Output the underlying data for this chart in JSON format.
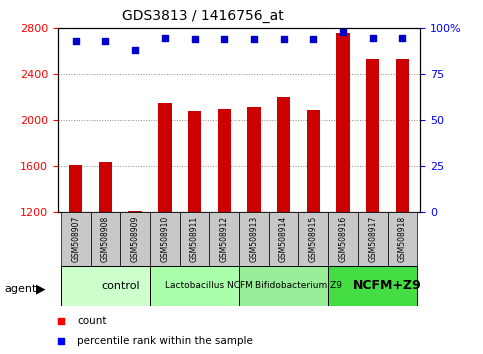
{
  "title": "GDS3813 / 1416756_at",
  "samples": [
    "GSM508907",
    "GSM508908",
    "GSM508909",
    "GSM508910",
    "GSM508911",
    "GSM508912",
    "GSM508913",
    "GSM508914",
    "GSM508915",
    "GSM508916",
    "GSM508917",
    "GSM508918"
  ],
  "counts": [
    1610,
    1635,
    1210,
    2150,
    2080,
    2100,
    2120,
    2200,
    2090,
    2760,
    2530,
    2530
  ],
  "percentile": [
    93,
    93,
    88,
    95,
    94,
    94,
    94,
    94,
    94,
    98,
    95,
    95
  ],
  "bar_color": "#cc0000",
  "dot_color": "#0000cc",
  "ylim_left": [
    1200,
    2800
  ],
  "ylim_right": [
    0,
    100
  ],
  "yticks_left": [
    1200,
    1600,
    2000,
    2400,
    2800
  ],
  "yticks_right": [
    0,
    25,
    50,
    75,
    100
  ],
  "right_tick_labels": [
    "0",
    "25",
    "50",
    "75",
    "100%"
  ],
  "groups": [
    {
      "label": "control",
      "start": 0,
      "end": 3,
      "color": "#ccffcc"
    },
    {
      "label": "Lactobacillus NCFM",
      "start": 3,
      "end": 6,
      "color": "#aaffaa"
    },
    {
      "label": "Bifidobacterium Z9",
      "start": 6,
      "end": 9,
      "color": "#99ee99"
    },
    {
      "label": "NCFM+Z9",
      "start": 9,
      "end": 12,
      "color": "#44dd44"
    }
  ],
  "group_fontsizes": [
    8,
    6.5,
    6.5,
    9
  ],
  "group_fontweights": [
    "normal",
    "normal",
    "normal",
    "bold"
  ],
  "bar_width": 0.45,
  "dot_size": 20,
  "title_fontsize": 10,
  "ytick_fontsize": 8,
  "sample_fontsize": 5.5,
  "grid_color": "#888888",
  "grid_style": "dotted",
  "sample_box_color": "#c8c8c8",
  "agent_fontsize": 8
}
